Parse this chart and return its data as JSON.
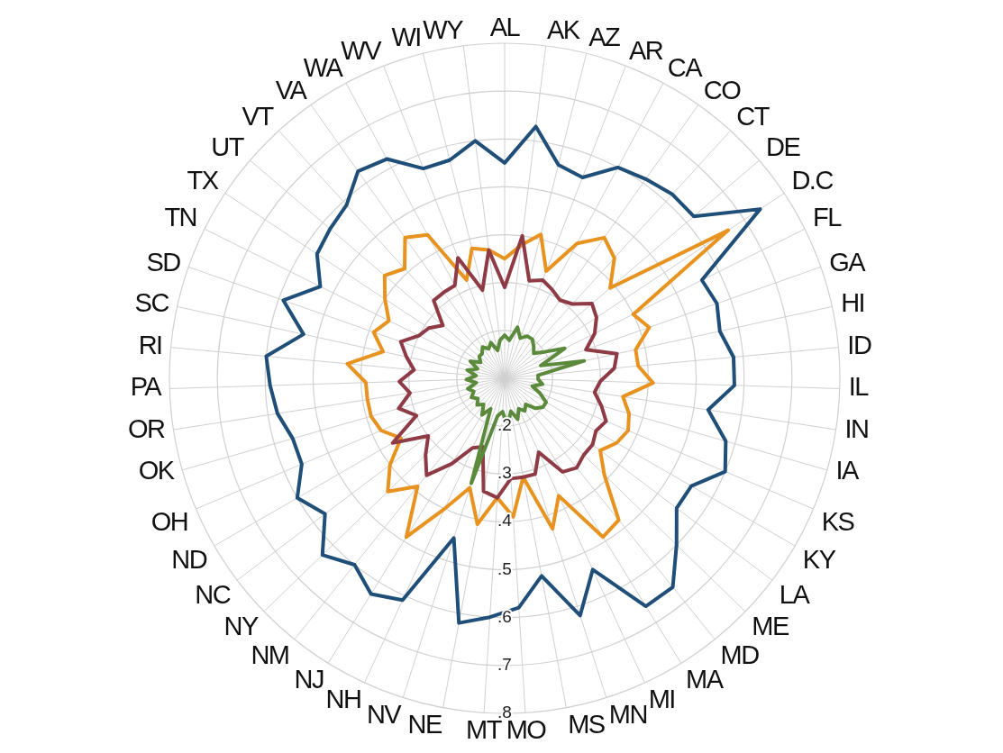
{
  "chart_data": {
    "type": "radar",
    "categories": [
      "AL",
      "AK",
      "AZ",
      "AR",
      "CA",
      "CO",
      "CT",
      "DE",
      "D.C",
      "FL",
      "GA",
      "HI",
      "ID",
      "IL",
      "IN",
      "IA",
      "KS",
      "KY",
      "LA",
      "ME",
      "MD",
      "MA",
      "MI",
      "MN",
      "MS",
      "MO",
      "MT",
      "NE",
      "NV",
      "NH",
      "NJ",
      "NM",
      "NY",
      "NC",
      "ND",
      "OH",
      "OK",
      "OR",
      "PA",
      "RI",
      "SC",
      "SD",
      "TN",
      "TX",
      "UT",
      "VT",
      "VA",
      "WA",
      "WV",
      "WI",
      "WY"
    ],
    "ylim": [
      0.1,
      0.8
    ],
    "yticks": [
      {
        "value": 0.2,
        "label": ".2"
      },
      {
        "value": 0.3,
        "label": ".3"
      },
      {
        "value": 0.4,
        "label": ".4"
      },
      {
        "value": 0.5,
        "label": ".5"
      },
      {
        "value": 0.6,
        "label": ".6"
      },
      {
        "value": 0.7,
        "label": ".7"
      },
      {
        "value": 0.8,
        "label": ".8"
      }
    ],
    "grid": true,
    "series": [
      {
        "color": "#1f4e79",
        "values": [
          0.55,
          0.63,
          0.56,
          0.55,
          0.6,
          0.61,
          0.62,
          0.62,
          0.74,
          0.56,
          0.57,
          0.56,
          0.58,
          0.58,
          0.53,
          0.58,
          0.6,
          0.55,
          0.55,
          0.6,
          0.66,
          0.66,
          0.54,
          0.62,
          0.52,
          0.58,
          0.6,
          0.62,
          0.45,
          0.61,
          0.63,
          0.6,
          0.63,
          0.57,
          0.6,
          0.56,
          0.56,
          0.58,
          0.59,
          0.6,
          0.53,
          0.59,
          0.53,
          0.57,
          0.58,
          0.59,
          0.63,
          0.62,
          0.57,
          0.57,
          0.6
        ]
      },
      {
        "color": "#e8921f",
        "values": [
          0.35,
          0.38,
          0.41,
          0.34,
          0.42,
          0.46,
          0.44,
          0.39,
          0.66,
          0.4,
          0.42,
          0.38,
          0.38,
          0.41,
          0.35,
          0.37,
          0.38,
          0.37,
          0.35,
          0.39,
          0.48,
          0.49,
          0.37,
          0.43,
          0.31,
          0.39,
          0.35,
          0.41,
          0.34,
          0.4,
          0.49,
          0.39,
          0.44,
          0.4,
          0.35,
          0.38,
          0.39,
          0.39,
          0.39,
          0.43,
          0.36,
          0.39,
          0.37,
          0.4,
          0.43,
          0.41,
          0.46,
          0.44,
          0.32,
          0.38,
          0.37
        ]
      },
      {
        "color": "#8e3b46",
        "values": [
          0.29,
          0.4,
          0.31,
          0.32,
          0.31,
          0.3,
          0.31,
          0.34,
          0.33,
          0.31,
          0.28,
          0.34,
          0.33,
          0.3,
          0.29,
          0.31,
          0.33,
          0.32,
          0.33,
          0.33,
          0.34,
          0.33,
          0.27,
          0.31,
          0.31,
          0.31,
          0.35,
          0.34,
          0.25,
          0.26,
          0.31,
          0.36,
          0.33,
          0.3,
          0.37,
          0.3,
          0.33,
          0.3,
          0.32,
          0.29,
          0.31,
          0.33,
          0.3,
          0.29,
          0.27,
          0.32,
          0.32,
          0.32,
          0.37,
          0.29,
          0.37
        ]
      },
      {
        "color": "#5b8a3c",
        "values": [
          0.19,
          0.18,
          0.21,
          0.19,
          0.2,
          0.2,
          0.19,
          0.18,
          0.2,
          0.24,
          0.18,
          0.27,
          0.17,
          0.17,
          0.18,
          0.16,
          0.18,
          0.2,
          0.2,
          0.19,
          0.17,
          0.18,
          0.17,
          0.19,
          0.17,
          0.2,
          0.17,
          0.18,
          0.33,
          0.17,
          0.19,
          0.17,
          0.18,
          0.17,
          0.18,
          0.17,
          0.18,
          0.16,
          0.18,
          0.16,
          0.18,
          0.16,
          0.18,
          0.16,
          0.17,
          0.17,
          0.18,
          0.17,
          0.18,
          0.16,
          0.18
        ]
      }
    ]
  }
}
